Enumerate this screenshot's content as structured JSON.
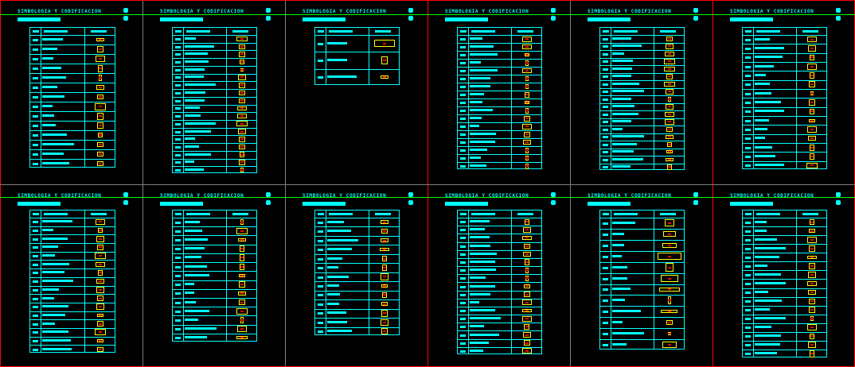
{
  "sheet": {
    "line_colors": {
      "frame": "#ff0000",
      "grid": "#808080",
      "title_rule": "#00ff00",
      "table": "#00ffff",
      "symbol": "#ffff00",
      "marker": "#ff0000"
    },
    "panels": [
      {
        "title": "SIMBOLOGIA Y CODIFICACION",
        "rows": 14
      },
      {
        "title": "SIMBOLOGIA Y CODIFICACION",
        "rows": 18
      },
      {
        "title": "SIMBOLOGIA Y CODIFICACION",
        "rows": 3
      },
      {
        "title": "SIMBOLOGIA Y CODIFICACION",
        "rows": 17
      },
      {
        "title": "SIMBOLOGIA Y CODIFICACION",
        "rows": 18
      },
      {
        "title": "SIMBOLOGIA Y CODIFICACION",
        "rows": 15
      },
      {
        "title": "SIMBOLOGIA Y CODIFICACION",
        "rows": 16
      },
      {
        "title": "SIMBOLOGIA Y CODIFICACION",
        "rows": 14
      },
      {
        "title": "SIMBOLOGIA Y CODIFICACION",
        "rows": 13
      },
      {
        "title": "SIMBOLOGIA Y CODIFICACION",
        "rows": 17
      },
      {
        "title": "SIMBOLOGIA Y CODIFICACION",
        "rows": 12
      },
      {
        "title": "SIMBOLOGIA Y CODIFICACION",
        "rows": 16
      }
    ]
  }
}
